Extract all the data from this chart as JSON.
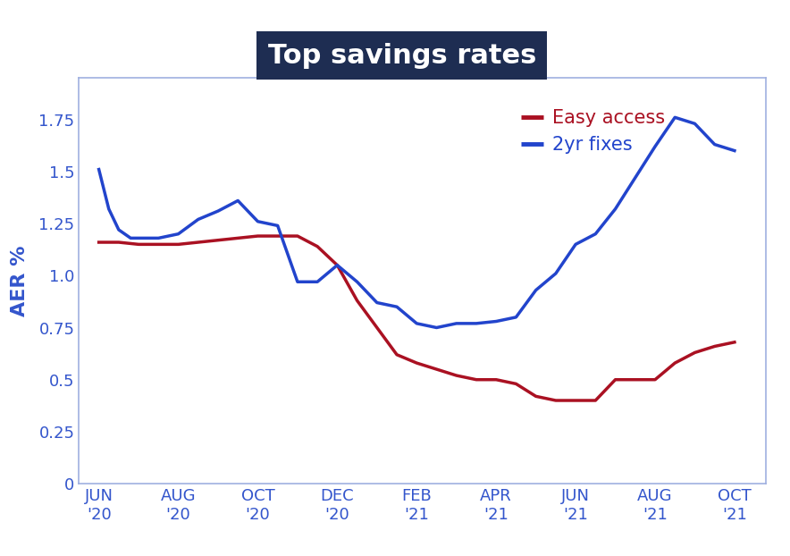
{
  "title": "Top savings rates",
  "title_bg_color": "#1e2d52",
  "title_text_color": "#ffffff",
  "ylabel": "AER %",
  "ylabel_color": "#3355cc",
  "tick_label_color": "#3355cc",
  "background_color": "#ffffff",
  "border_color": "#a0b0e0",
  "ylim": [
    0,
    1.95
  ],
  "yticks": [
    0,
    0.25,
    0.5,
    0.75,
    1.0,
    1.25,
    1.5,
    1.75
  ],
  "x_labels": [
    "JUN\n'20",
    "AUG\n'20",
    "OCT\n'20",
    "DEC\n'20",
    "FEB\n'21",
    "APR\n'21",
    "JUN\n'21",
    "AUG\n'21",
    "OCT\n'21"
  ],
  "x_positions": [
    0,
    2,
    4,
    6,
    8,
    10,
    12,
    14,
    16
  ],
  "easy_access_color": "#aa1122",
  "two_yr_color": "#2244cc",
  "easy_access_label": "Easy access",
  "two_yr_label": "2yr fixes",
  "easy_access_x": [
    0,
    0.5,
    1.0,
    1.5,
    2.0,
    2.5,
    3.0,
    3.5,
    4.0,
    4.5,
    5.0,
    5.5,
    6.0,
    6.5,
    7.0,
    7.5,
    8.0,
    8.5,
    9.0,
    9.5,
    10.0,
    10.5,
    11.0,
    11.5,
    12.0,
    12.5,
    13.0,
    13.5,
    14.0,
    14.5,
    15.0,
    15.5,
    16.0
  ],
  "easy_access_y": [
    1.16,
    1.16,
    1.15,
    1.15,
    1.15,
    1.16,
    1.17,
    1.18,
    1.19,
    1.19,
    1.19,
    1.14,
    1.05,
    0.88,
    0.75,
    0.62,
    0.58,
    0.55,
    0.52,
    0.5,
    0.5,
    0.48,
    0.42,
    0.4,
    0.4,
    0.4,
    0.5,
    0.5,
    0.5,
    0.58,
    0.63,
    0.66,
    0.68
  ],
  "two_yr_x": [
    0,
    0.25,
    0.5,
    0.8,
    1.2,
    1.5,
    2.0,
    2.5,
    3.0,
    3.5,
    4.0,
    4.5,
    5.0,
    5.5,
    6.0,
    6.5,
    7.0,
    7.5,
    8.0,
    8.5,
    9.0,
    9.5,
    10.0,
    10.5,
    11.0,
    11.5,
    12.0,
    12.5,
    13.0,
    13.5,
    14.0,
    14.5,
    15.0,
    15.5,
    16.0
  ],
  "two_yr_y": [
    1.51,
    1.32,
    1.22,
    1.18,
    1.18,
    1.18,
    1.2,
    1.27,
    1.31,
    1.36,
    1.26,
    1.24,
    0.97,
    0.97,
    1.05,
    0.97,
    0.87,
    0.85,
    0.77,
    0.75,
    0.77,
    0.77,
    0.78,
    0.8,
    0.93,
    1.01,
    1.15,
    1.2,
    1.32,
    1.47,
    1.62,
    1.76,
    1.73,
    1.63,
    1.6
  ],
  "line_width": 2.5,
  "legend_fontsize": 15,
  "ylabel_fontsize": 16,
  "tick_fontsize": 13,
  "title_fontsize": 22
}
